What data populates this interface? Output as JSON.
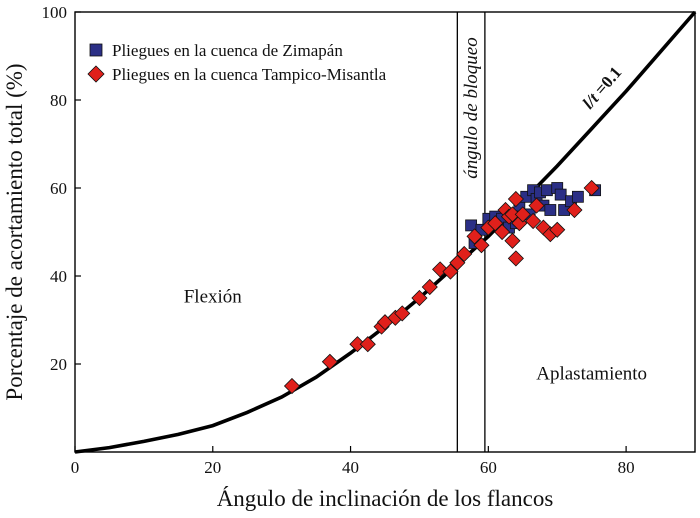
{
  "chart_data": {
    "type": "scatter",
    "xlabel": "Ángulo de inclinación de los flancos",
    "ylabel": "Porcentaje de acortamiento total (%)",
    "xlim": [
      0,
      90
    ],
    "ylim": [
      0,
      100
    ],
    "xticks": [
      0,
      20,
      40,
      60,
      80
    ],
    "yticks": [
      20,
      40,
      60,
      80,
      100
    ],
    "grid": false,
    "legend_position": "top-left",
    "series": [
      {
        "name": "Pliegues en la cuenca de Zimapán",
        "marker": "square",
        "color": "#2b2f86",
        "x": [
          57.5,
          58.0,
          59.0,
          60.0,
          61.0,
          62.0,
          63.0,
          64.0,
          64.5,
          65.5,
          66.0,
          66.5,
          67.0,
          67.5,
          68.0,
          68.5,
          69.0,
          70.0,
          70.5,
          71.0,
          72.0,
          73.0,
          75.5
        ],
        "y": [
          51.5,
          47.5,
          50.5,
          53.0,
          53.5,
          53.0,
          51.0,
          52.0,
          56.0,
          58.0,
          54.0,
          59.5,
          57.5,
          59.0,
          56.0,
          59.5,
          55.0,
          60.0,
          58.5,
          55.0,
          57.0,
          58.0,
          59.5
        ]
      },
      {
        "name": "Pliegues en la cuenca Tampico-Misantla",
        "marker": "diamond",
        "color": "#e0201b",
        "x": [
          31.5,
          37.0,
          41.0,
          42.5,
          44.5,
          45.0,
          46.5,
          47.5,
          50.0,
          51.5,
          53.0,
          54.5,
          55.5,
          56.5,
          58.0,
          59.0,
          60.0,
          61.0,
          62.0,
          62.5,
          63.0,
          63.5,
          64.0,
          64.5,
          65.0,
          66.5,
          67.0,
          68.0,
          69.0,
          70.0,
          72.5,
          75.0,
          63.5,
          64.0
        ],
        "y": [
          15.0,
          20.5,
          24.5,
          24.5,
          28.5,
          29.5,
          30.5,
          31.5,
          35.0,
          37.5,
          41.5,
          41.0,
          43.0,
          45.0,
          49.0,
          47.0,
          51.0,
          52.0,
          50.0,
          55.0,
          53.5,
          54.0,
          57.5,
          52.0,
          54.0,
          52.5,
          56.0,
          51.0,
          49.5,
          50.5,
          55.0,
          60.0,
          48.0,
          44.0
        ]
      }
    ],
    "curve": {
      "label_italic": "l/t",
      "label_rest": " =0.1"
    },
    "blocking_angle": {
      "x": [
        55.5,
        59.5
      ],
      "label": "ángulo de bloqueo"
    },
    "regions": [
      {
        "label": "Flexión",
        "x": 20,
        "y": 34
      },
      {
        "label": "Aplastamiento",
        "x": 75,
        "y": 16.5
      }
    ]
  }
}
